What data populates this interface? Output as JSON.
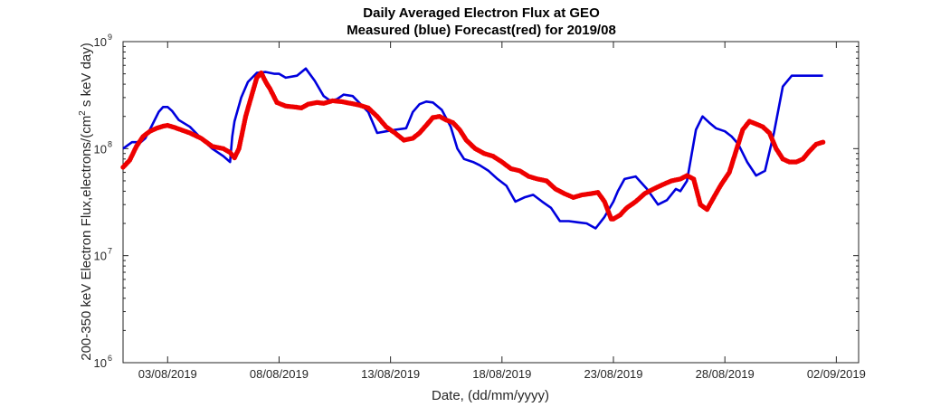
{
  "chart_data": {
    "type": "line",
    "title": "Daily Averaged Electron Flux at GEO",
    "subtitle": "Measured (blue) Forecast(red) for 2019/08",
    "xlabel": "Date, (dd/mm/yyyy)",
    "ylabel_main": "200-350 keV Electron Flux,electrons/(cm",
    "ylabel_sup": "2",
    "ylabel_tail": " s keV day)",
    "yscale": "log",
    "x_unit": "days since 01/08/2019 00:00",
    "xlim": [
      0.0,
      33.0
    ],
    "ylim": [
      1000000,
      1000000000
    ],
    "x_ticks": [
      {
        "x": 2,
        "label": "03/08/2019"
      },
      {
        "x": 7,
        "label": "08/08/2019"
      },
      {
        "x": 12,
        "label": "13/08/2019"
      },
      {
        "x": 17,
        "label": "18/08/2019"
      },
      {
        "x": 22,
        "label": "23/08/2019"
      },
      {
        "x": 27,
        "label": "28/08/2019"
      },
      {
        "x": 32,
        "label": "02/09/2019"
      }
    ],
    "y_ticks": [
      {
        "value": 1000000,
        "base": "10",
        "exp": "6"
      },
      {
        "value": 10000000,
        "base": "10",
        "exp": "7"
      },
      {
        "value": 100000000,
        "base": "10",
        "exp": "8"
      },
      {
        "value": 1000000000,
        "base": "10",
        "exp": "9"
      }
    ],
    "series": [
      {
        "name": "Measured",
        "color": "#0000dd",
        "style": "line",
        "x": [
          0.0,
          0.4,
          0.8,
          1.0,
          1.3,
          1.6,
          1.8,
          2.0,
          2.2,
          2.5,
          3.0,
          3.5,
          4.0,
          4.5,
          4.8,
          4.9,
          5.0,
          5.3,
          5.6,
          6.0,
          6.4,
          6.8,
          7.0,
          7.3,
          7.8,
          8.2,
          8.6,
          9.0,
          9.3,
          9.6,
          9.9,
          10.3,
          10.7,
          11.0,
          11.4,
          11.8,
          12.2,
          12.7,
          13.0,
          13.3,
          13.6,
          13.9,
          14.3,
          14.7,
          15.0,
          15.3,
          15.7,
          16.0,
          16.4,
          16.8,
          17.2,
          17.6,
          18.0,
          18.4,
          18.8,
          19.2,
          19.6,
          20.0,
          20.4,
          20.8,
          21.2,
          21.6,
          22.0,
          22.2,
          22.5,
          23.0,
          23.5,
          24.0,
          24.4,
          24.8,
          25.0,
          25.3,
          25.7,
          26.0,
          26.3,
          26.6,
          27.0,
          27.3,
          27.6,
          28.0,
          28.4,
          28.8,
          29.2,
          29.6,
          30.0,
          30.3,
          30.6,
          30.8,
          31.0,
          31.1,
          31.2,
          31.4
        ],
        "y": [
          100000000,
          115000000,
          115000000,
          125000000,
          165000000,
          220000000,
          245000000,
          245000000,
          225000000,
          185000000,
          160000000,
          125000000,
          100000000,
          85000000,
          75000000,
          130000000,
          180000000,
          300000000,
          420000000,
          510000000,
          520000000,
          500000000,
          500000000,
          460000000,
          480000000,
          560000000,
          430000000,
          310000000,
          280000000,
          290000000,
          320000000,
          310000000,
          255000000,
          220000000,
          140000000,
          145000000,
          150000000,
          155000000,
          220000000,
          260000000,
          275000000,
          270000000,
          230000000,
          160000000,
          100000000,
          80000000,
          75000000,
          70000000,
          62000000,
          52000000,
          45000000,
          32000000,
          35000000,
          37000000,
          32000000,
          28000000,
          21000000,
          21000000,
          20500000,
          20000000,
          18000000,
          23000000,
          32000000,
          40000000,
          52000000,
          55000000,
          42000000,
          30000000,
          33000000,
          42000000,
          40000000,
          50000000,
          150000000,
          200000000,
          175000000,
          155000000,
          145000000,
          130000000,
          110000000,
          75000000,
          56000000,
          62000000,
          140000000,
          380000000,
          480000000,
          480000000,
          480000000,
          480000000,
          480000000,
          480000000,
          480000000,
          480000000
        ]
      },
      {
        "name": "Forecast",
        "color": "#ee0000",
        "style": "dots",
        "x": [
          0.0,
          0.3,
          0.6,
          0.9,
          1.2,
          1.5,
          1.8,
          2.0,
          2.3,
          2.6,
          3.0,
          3.5,
          4.0,
          4.5,
          4.8,
          5.0,
          5.2,
          5.5,
          5.8,
          6.0,
          6.2,
          6.4,
          6.6,
          6.9,
          7.3,
          7.7,
          8.0,
          8.3,
          8.7,
          9.0,
          9.4,
          9.8,
          10.2,
          10.6,
          11.0,
          11.4,
          11.8,
          12.2,
          12.6,
          13.0,
          13.3,
          13.6,
          13.9,
          14.2,
          14.5,
          14.8,
          15.1,
          15.4,
          15.8,
          16.2,
          16.6,
          17.0,
          17.4,
          17.8,
          18.2,
          18.6,
          19.0,
          19.4,
          19.8,
          20.2,
          20.6,
          21.0,
          21.3,
          21.6,
          21.9,
          22.0,
          22.3,
          22.6,
          23.0,
          23.4,
          23.8,
          24.2,
          24.6,
          25.0,
          25.3,
          25.6,
          25.9,
          26.2,
          26.5,
          26.8,
          27.2,
          27.5,
          27.8,
          28.1,
          28.4,
          28.7,
          29.0,
          29.3,
          29.6,
          29.9,
          30.2,
          30.5,
          30.8,
          31.1,
          31.4
        ],
        "y": [
          67000000,
          78000000,
          105000000,
          130000000,
          145000000,
          155000000,
          162000000,
          165000000,
          158000000,
          150000000,
          140000000,
          125000000,
          105000000,
          100000000,
          92000000,
          82000000,
          100000000,
          200000000,
          330000000,
          460000000,
          510000000,
          420000000,
          360000000,
          270000000,
          250000000,
          245000000,
          240000000,
          260000000,
          270000000,
          265000000,
          280000000,
          275000000,
          265000000,
          255000000,
          240000000,
          200000000,
          160000000,
          140000000,
          120000000,
          125000000,
          140000000,
          165000000,
          195000000,
          200000000,
          185000000,
          175000000,
          150000000,
          120000000,
          100000000,
          90000000,
          85000000,
          75000000,
          65000000,
          62000000,
          55000000,
          52000000,
          50000000,
          42000000,
          38000000,
          35000000,
          37000000,
          38000000,
          39000000,
          32000000,
          22000000,
          22000000,
          24000000,
          28000000,
          32000000,
          38000000,
          42000000,
          46000000,
          50000000,
          52000000,
          56000000,
          52000000,
          30000000,
          27000000,
          35000000,
          45000000,
          60000000,
          95000000,
          150000000,
          180000000,
          170000000,
          160000000,
          140000000,
          100000000,
          80000000,
          75000000,
          75000000,
          80000000,
          95000000,
          110000000,
          115000000
        ]
      }
    ]
  }
}
